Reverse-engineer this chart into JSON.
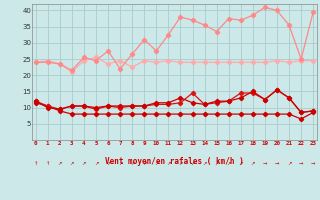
{
  "xlabel": "Vent moyen/en rafales ( km/h )",
  "bg_color": "#cce8e8",
  "grid_color": "#aacccc",
  "x": [
    0,
    1,
    2,
    3,
    4,
    5,
    6,
    7,
    8,
    9,
    10,
    11,
    12,
    13,
    14,
    15,
    16,
    17,
    18,
    19,
    20,
    21,
    22,
    23
  ],
  "line_flat_pink": [
    24.0,
    24.5,
    23.5,
    21.0,
    24.5,
    25.5,
    23.5,
    24.5,
    22.5,
    24.5,
    24.0,
    24.5,
    24.0,
    24.0,
    24.0,
    24.0,
    24.0,
    24.0,
    24.0,
    24.0,
    24.5,
    24.0,
    24.5,
    24.5
  ],
  "line_rise_pink": [
    24.0,
    24.0,
    23.5,
    21.5,
    25.5,
    24.5,
    27.5,
    22.0,
    26.5,
    31.0,
    27.5,
    32.5,
    38.0,
    37.0,
    35.5,
    33.5,
    37.5,
    37.0,
    38.5,
    41.0,
    40.0,
    35.5,
    25.0,
    39.5
  ],
  "line_flat_red": [
    11.5,
    10.5,
    9.0,
    8.0,
    8.0,
    8.0,
    8.0,
    8.0,
    8.0,
    8.0,
    8.0,
    8.0,
    8.0,
    8.0,
    8.0,
    8.0,
    8.0,
    8.0,
    8.0,
    8.0,
    8.0,
    8.0,
    6.5,
    8.5
  ],
  "line_mid_red1": [
    12.0,
    10.5,
    9.5,
    10.5,
    10.5,
    9.5,
    10.5,
    10.0,
    10.5,
    10.5,
    11.0,
    11.0,
    11.5,
    14.5,
    11.0,
    11.5,
    12.0,
    14.5,
    14.5,
    12.5,
    15.5,
    13.0,
    8.5,
    9.0
  ],
  "line_mid_red2": [
    12.0,
    10.0,
    9.5,
    10.5,
    10.5,
    10.0,
    10.5,
    10.5,
    10.5,
    10.5,
    11.5,
    11.5,
    13.0,
    11.5,
    11.0,
    12.0,
    12.0,
    13.0,
    15.0,
    12.5,
    15.5,
    13.0,
    8.5,
    9.0
  ],
  "col_flat_pink": "#ffaaaa",
  "col_rise_pink": "#ff8888",
  "col_dark_red": "#cc0000",
  "col_mid_red": "#dd1111",
  "ylim": [
    0,
    42
  ],
  "yticks": [
    0,
    5,
    10,
    15,
    20,
    25,
    30,
    35,
    40
  ],
  "xlim": [
    -0.3,
    23.3
  ],
  "arrows": [
    "↑",
    "↑",
    "↗",
    "↗",
    "↗",
    "↗",
    "↗",
    "↗",
    "↗",
    "↗",
    "↗",
    "↗",
    "↗",
    "↗",
    "↗",
    "↗",
    "↗",
    "↗",
    "↗",
    "→",
    "→",
    "↗",
    "→",
    "→"
  ]
}
